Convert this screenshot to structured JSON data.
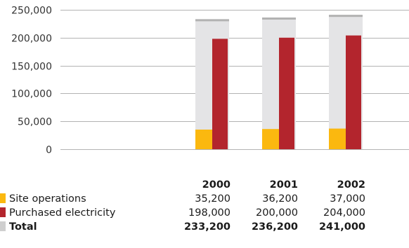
{
  "chart_data": {
    "type": "bar",
    "stacking": "site operations and purchased electricity drawn as side-by-side bars in front of a total bar",
    "categories": [
      "2000",
      "2001",
      "2002"
    ],
    "series": [
      {
        "name": "Site operations",
        "values": [
          35200,
          36200,
          37000
        ],
        "color": "#fbb80f"
      },
      {
        "name": "Purchased electricity",
        "values": [
          198000,
          200000,
          204000
        ],
        "color": "#b3252d"
      },
      {
        "name": "Total",
        "values": [
          233200,
          236200,
          241000
        ],
        "color": "#e4e4e6",
        "top_color": "#b2b2b2"
      }
    ],
    "ylim": [
      0,
      250000
    ],
    "yticks": [
      0,
      50000,
      100000,
      150000,
      200000,
      250000
    ],
    "ytick_labels": [
      "0",
      "50,000",
      "100,000",
      "150,000",
      "200,000",
      "250,000"
    ],
    "grid": true,
    "title": "",
    "xlabel": "",
    "ylabel": ""
  },
  "table": {
    "headers": [
      "2000",
      "2001",
      "2002"
    ],
    "rows": [
      {
        "label": "Site operations",
        "swatch_color": "#fbb80f",
        "values": [
          "35,200",
          "36,200",
          "37,000"
        ]
      },
      {
        "label": "Purchased electricity",
        "swatch_color": "#b3252d",
        "values": [
          "198,000",
          "200,000",
          "204,000"
        ]
      },
      {
        "label": "Total",
        "swatch_color": "#cfcfcf",
        "values": [
          "233,200",
          "236,200",
          "241,000"
        ]
      }
    ]
  }
}
